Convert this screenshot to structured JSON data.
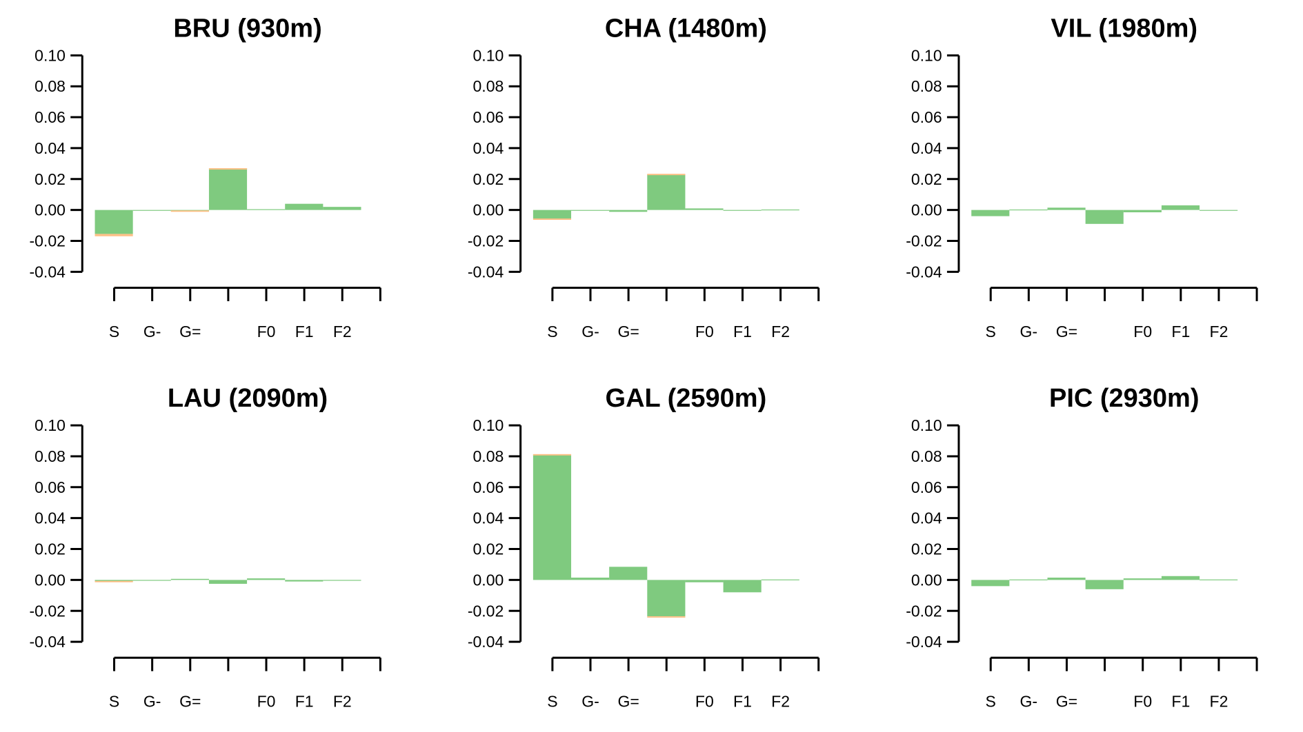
{
  "colors": {
    "green": "#7fca7f",
    "orange": "#fdc086",
    "blue": "#b0b8e0",
    "axis": "#000000"
  },
  "y_ticks": [
    "0.10",
    "0.08",
    "0.06",
    "0.04",
    "0.02",
    "0.00",
    "-0.02",
    "-0.04"
  ],
  "x_labels": [
    "S",
    "G-",
    "G=",
    "",
    "F0",
    "F1",
    "F2"
  ],
  "chart_data": [
    {
      "type": "bar",
      "title": "BRU (930m)",
      "ylim": [
        -0.04,
        0.1
      ],
      "categories": [
        "S",
        "G-",
        "G=",
        "",
        "F0",
        "F1",
        "F2"
      ],
      "series": [
        {
          "values": [
            -0.0155,
            -0.0003,
            -0.001,
            0.027,
            0.0005,
            0.004,
            0.002
          ]
        }
      ],
      "secondary": [
        {
          "values": [
            -0.0015,
            0,
            0.0007,
            -0.0007,
            0,
            0,
            0
          ]
        }
      ]
    },
    {
      "type": "bar",
      "title": "CHA (1480m)",
      "ylim": [
        -0.04,
        0.1
      ],
      "categories": [
        "S",
        "G-",
        "G=",
        "",
        "F0",
        "F1",
        "F2"
      ],
      "series": [
        {
          "values": [
            -0.0055,
            -0.0003,
            -0.0012,
            0.023,
            0.001,
            -0.0003,
            0.0003
          ]
        }
      ],
      "secondary": [
        {
          "values": [
            -0.0007,
            0,
            0,
            0.0004,
            0,
            0,
            0
          ]
        }
      ]
    },
    {
      "type": "bar",
      "title": "VIL (1980m)",
      "ylim": [
        -0.04,
        0.1
      ],
      "categories": [
        "S",
        "G-",
        "G=",
        "",
        "F0",
        "F1",
        "F2"
      ],
      "series": [
        {
          "values": [
            -0.004,
            0.0003,
            0.0015,
            -0.009,
            -0.0015,
            0.003,
            0
          ]
        }
      ],
      "secondary": [
        {
          "values": [
            0,
            0,
            0,
            0,
            0,
            0,
            0
          ]
        }
      ]
    },
    {
      "type": "bar",
      "title": "LAU (2090m)",
      "ylim": [
        -0.04,
        0.1
      ],
      "categories": [
        "S",
        "G-",
        "G=",
        "",
        "F0",
        "F1",
        "F2"
      ],
      "series": [
        {
          "values": [
            -0.001,
            0,
            0.0007,
            -0.0025,
            0.001,
            -0.001,
            0
          ]
        }
      ],
      "secondary": [
        {
          "values": [
            0.0004,
            0,
            0,
            0,
            0,
            0,
            0
          ]
        }
      ]
    },
    {
      "type": "bar",
      "title": "GAL (2590m)",
      "ylim": [
        -0.04,
        0.1
      ],
      "categories": [
        "S",
        "G-",
        "G=",
        "",
        "F0",
        "F1",
        "F2"
      ],
      "series": [
        {
          "values": [
            0.081,
            0.0015,
            0.0085,
            -0.0235,
            -0.0015,
            -0.008,
            0.0003
          ]
        }
      ],
      "secondary": [
        {
          "values": [
            0.0004,
            0,
            0,
            -0.0004,
            0,
            0,
            0
          ]
        }
      ]
    },
    {
      "type": "bar",
      "title": "PIC (2930m)",
      "ylim": [
        -0.04,
        0.1
      ],
      "categories": [
        "S",
        "G-",
        "G=",
        "",
        "F0",
        "F1",
        "F2"
      ],
      "series": [
        {
          "values": [
            -0.004,
            0.0003,
            0.0015,
            -0.006,
            0.001,
            0.0025,
            0.0003
          ]
        }
      ],
      "secondary": [
        {
          "values": [
            0,
            0,
            0,
            0,
            0,
            0,
            0
          ]
        }
      ]
    }
  ]
}
